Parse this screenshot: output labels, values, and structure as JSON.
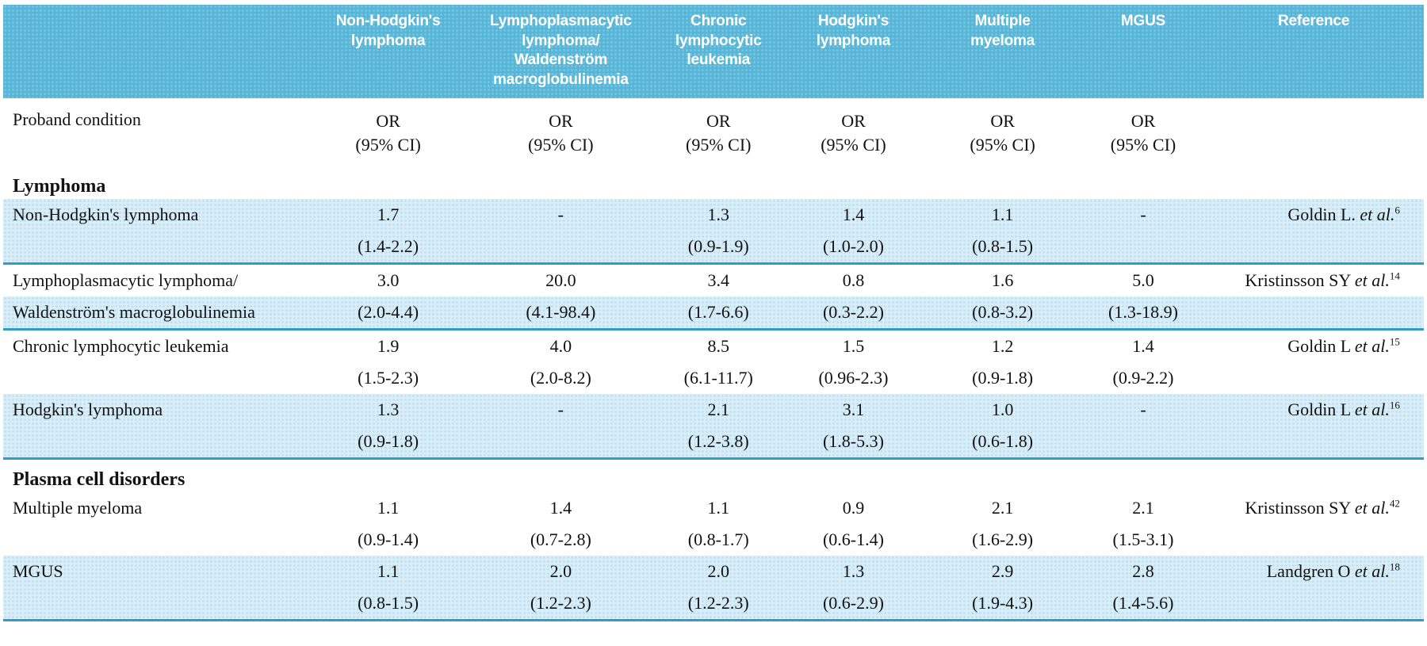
{
  "colors": {
    "header_bg": "#57b6d8",
    "row_shade": "#d9eef8",
    "divider": "#2f9dc6"
  },
  "header": {
    "columns": [
      "Non-Hodgkin's\nlymphoma",
      "Lymphoplasmacytic\nlymphoma/\nWaldenström\nmacroglobulinemia",
      "Chronic\nlymphocytic\nleukemia",
      "Hodgkin's\nlymphoma",
      "Multiple\nmyeloma",
      "MGUS",
      "Reference"
    ]
  },
  "subheader": {
    "label": "Proband condition",
    "or_label": "OR",
    "ci_label": "(95% CI)"
  },
  "sections": [
    {
      "title": "Lymphoma",
      "rows": [
        {
          "label_line1": "Non-Hodgkin's lymphoma",
          "label_line2": "",
          "or_values": [
            "1.7",
            "-",
            "1.3",
            "1.4",
            "1.1",
            "-"
          ],
          "ci_values": [
            "(1.4-2.2)",
            "",
            "(0.9-1.9)",
            "(1.0-2.0)",
            "(0.8-1.5)",
            ""
          ],
          "reference": {
            "name": "Goldin L.",
            "etal": "et al.",
            "sup": "6"
          },
          "shade": "both",
          "divider_below": true
        },
        {
          "label_line1": "Lymphoplasmacytic lymphoma/",
          "label_line2": "Waldenström's macroglobulinemia",
          "or_values": [
            "3.0",
            "20.0",
            "3.4",
            "0.8",
            "1.6",
            "5.0"
          ],
          "ci_values": [
            "(2.0-4.4)",
            "(4.1-98.4)",
            "(1.7-6.6)",
            "(0.3-2.2)",
            "(0.8-3.2)",
            "(1.3-18.9)"
          ],
          "reference": {
            "name": "Kristinsson SY",
            "etal": "et al.",
            "sup": "14"
          },
          "shade": "line2",
          "divider_below": true
        },
        {
          "label_line1": "Chronic lymphocytic leukemia",
          "label_line2": "",
          "or_values": [
            "1.9",
            "4.0",
            "8.5",
            "1.5",
            "1.2",
            "1.4"
          ],
          "ci_values": [
            "(1.5-2.3)",
            "(2.0-8.2)",
            "(6.1-11.7)",
            "(0.96-2.3)",
            "(0.9-1.8)",
            "(0.9-2.2)"
          ],
          "reference": {
            "name": "Goldin L",
            "etal": "et al.",
            "sup": "15"
          },
          "shade": "none",
          "divider_below": false
        },
        {
          "label_line1": "Hodgkin's lymphoma",
          "label_line2": "",
          "or_values": [
            "1.3",
            "-",
            "2.1",
            "3.1",
            "1.0",
            "-"
          ],
          "ci_values": [
            "(0.9-1.8)",
            "",
            "(1.2-3.8)",
            "(1.8-5.3)",
            "(0.6-1.8)",
            ""
          ],
          "reference": {
            "name": "Goldin L",
            "etal": "et al.",
            "sup": "16"
          },
          "shade": "both",
          "divider_below": true
        }
      ]
    },
    {
      "title": "Plasma cell disorders",
      "rows": [
        {
          "label_line1": "Multiple myeloma",
          "label_line2": "",
          "or_values": [
            "1.1",
            "1.4",
            "1.1",
            "0.9",
            "2.1",
            "2.1"
          ],
          "ci_values": [
            "(0.9-1.4)",
            "(0.7-2.8)",
            "(0.8-1.7)",
            "(0.6-1.4)",
            "(1.6-2.9)",
            "(1.5-3.1)"
          ],
          "reference": {
            "name": "Kristinsson SY",
            "etal": "et al.",
            "sup": "42"
          },
          "shade": "none",
          "divider_below": false
        },
        {
          "label_line1": "MGUS",
          "label_line2": "",
          "or_values": [
            "1.1",
            "2.0",
            "2.0",
            "1.3",
            "2.9",
            "2.8"
          ],
          "ci_values": [
            "(0.8-1.5)",
            "(1.2-2.3)",
            "(1.2-2.3)",
            "(0.6-2.9)",
            "(1.9-4.3)",
            "(1.4-5.6)"
          ],
          "reference": {
            "name": "Landgren O",
            "etal": "et al.",
            "sup": "18"
          },
          "shade": "both",
          "divider_below": true
        }
      ]
    }
  ]
}
